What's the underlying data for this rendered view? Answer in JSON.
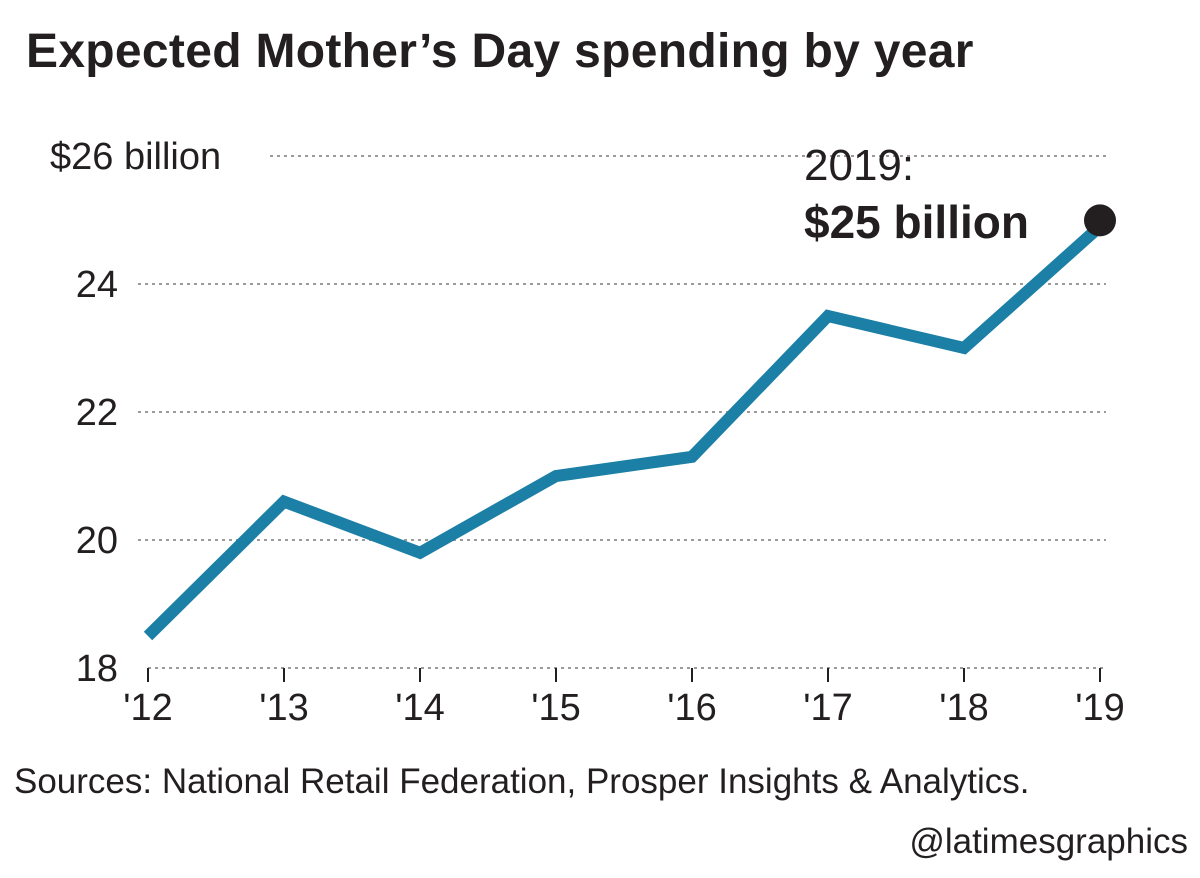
{
  "title": "Expected Mother’s Day spending by year",
  "source": "Sources: National Retail Federation, Prosper Insights & Analytics.",
  "credit": "@latimesgraphics",
  "annotation": {
    "year_label": "2019:",
    "value_label": "$25 billion"
  },
  "colors": {
    "line": "#1b7fa6",
    "text": "#231f20",
    "grid": "#9a9a9a",
    "marker": "#231f20"
  },
  "chart_data": {
    "type": "line",
    "title": "Expected Mother’s Day spending by year",
    "x": [
      "'12",
      "'13",
      "'14",
      "'15",
      "'16",
      "'17",
      "'18",
      "'19"
    ],
    "series": [
      {
        "values": [
          18.5,
          20.6,
          19.8,
          21.0,
          21.3,
          23.5,
          23.0,
          24.9
        ]
      }
    ],
    "y_ticks": [
      18,
      20,
      22,
      24,
      26
    ],
    "y_tick_labels": [
      "18",
      "20",
      "22",
      "24",
      "$26 billion"
    ],
    "ylim": [
      18,
      26
    ],
    "grid": true,
    "gridlines": "dotted horizontal",
    "annotation": {
      "x": "'19",
      "text": "2019: $25 billion"
    }
  }
}
